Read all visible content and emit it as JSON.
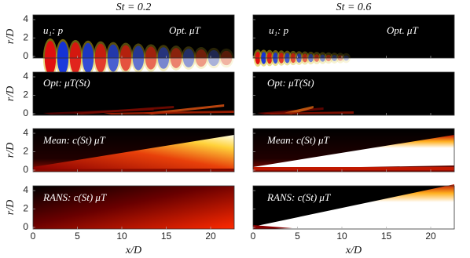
{
  "columns": [
    {
      "title": "St = 0.2",
      "panels": [
        {
          "labels": [
            "u₁: p",
            "Opt. μT"
          ]
        },
        {
          "labels": [
            "Opt: μT(St)"
          ]
        },
        {
          "labels": [
            "Mean: c(St) μT"
          ]
        },
        {
          "labels": [
            "RANS: c(St) μT"
          ]
        }
      ]
    },
    {
      "title": "St = 0.6",
      "panels": [
        {
          "labels": [
            "u₁: p",
            "Opt. μT"
          ]
        },
        {
          "labels": [
            "Opt: μT(St)"
          ]
        },
        {
          "labels": [
            "Mean: c(St) μT"
          ]
        },
        {
          "labels": [
            "RANS: c(St) μT"
          ]
        }
      ]
    }
  ],
  "y_axis": {
    "label": "r/D",
    "ticks": [
      0,
      2,
      4
    ]
  },
  "x_axis": {
    "label": "x/D",
    "ticks": [
      0,
      5,
      10,
      15,
      20
    ]
  }
}
